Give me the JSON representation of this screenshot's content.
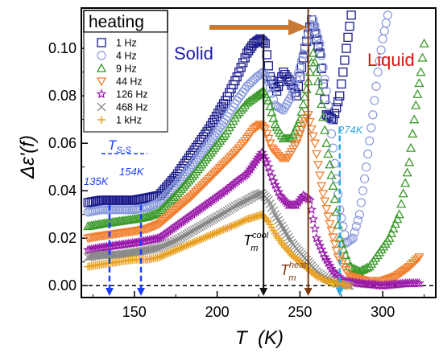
{
  "chart_data": {
    "type": "scatter",
    "title": "",
    "xlabel": "T  (K)",
    "ylabel": "Δε'(f)",
    "xlim": [
      118,
      332
    ],
    "ylim": [
      -0.005,
      0.117
    ],
    "x_ticks": [
      150,
      200,
      250,
      300
    ],
    "y_ticks": [
      0.0,
      0.02,
      0.04,
      0.06,
      0.08,
      0.1
    ],
    "x_tick_labels": [
      "150",
      "200",
      "250",
      "300"
    ],
    "y_tick_labels": [
      "0.00",
      "0.02",
      "0.04",
      "0.06",
      "0.08",
      "0.10"
    ],
    "legend": {
      "title": "heating",
      "position": "top-left"
    },
    "series": [
      {
        "name": "1 Hz",
        "color": "#1a1a8c",
        "marker": "square",
        "points": [
          [
            122,
            0.035
          ],
          [
            130,
            0.036
          ],
          [
            140,
            0.036
          ],
          [
            150,
            0.036
          ],
          [
            158,
            0.037
          ],
          [
            165,
            0.038
          ],
          [
            175,
            0.046
          ],
          [
            185,
            0.056
          ],
          [
            195,
            0.066
          ],
          [
            205,
            0.078
          ],
          [
            212,
            0.088
          ],
          [
            218,
            0.098
          ],
          [
            222,
            0.102
          ],
          [
            226,
            0.104
          ],
          [
            229,
            0.102
          ],
          [
            232,
            0.088
          ],
          [
            236,
            0.082
          ],
          [
            240,
            0.09
          ],
          [
            244,
            0.086
          ],
          [
            248,
            0.08
          ],
          [
            253,
            0.1
          ],
          [
            257,
            0.112
          ],
          [
            262,
            0.098
          ],
          [
            266,
            0.072
          ],
          [
            270,
            0.07
          ],
          [
            274,
            0.08
          ],
          [
            278,
            0.1
          ],
          [
            281,
            0.114
          ]
        ]
      },
      {
        "name": "4 Hz",
        "color": "#8899dd",
        "marker": "circle",
        "points": [
          [
            122,
            0.031
          ],
          [
            130,
            0.032
          ],
          [
            140,
            0.032
          ],
          [
            150,
            0.032
          ],
          [
            158,
            0.033
          ],
          [
            165,
            0.035
          ],
          [
            175,
            0.042
          ],
          [
            185,
            0.051
          ],
          [
            195,
            0.06
          ],
          [
            205,
            0.07
          ],
          [
            212,
            0.078
          ],
          [
            218,
            0.084
          ],
          [
            224,
            0.088
          ],
          [
            228,
            0.09
          ],
          [
            231,
            0.086
          ],
          [
            235,
            0.076
          ],
          [
            240,
            0.074
          ],
          [
            245,
            0.08
          ],
          [
            250,
            0.092
          ],
          [
            255,
            0.106
          ],
          [
            258,
            0.112
          ],
          [
            262,
            0.102
          ],
          [
            266,
            0.082
          ],
          [
            270,
            0.058
          ],
          [
            274,
            0.032
          ],
          [
            278,
            0.018
          ],
          [
            282,
            0.02
          ],
          [
            286,
            0.03
          ],
          [
            290,
            0.05
          ],
          [
            294,
            0.072
          ],
          [
            297,
            0.09
          ],
          [
            300,
            0.104
          ],
          [
            303,
            0.114
          ]
        ]
      },
      {
        "name": "9 Hz",
        "color": "#3a9a2a",
        "marker": "triangle-up",
        "points": [
          [
            122,
            0.025
          ],
          [
            130,
            0.026
          ],
          [
            140,
            0.027
          ],
          [
            150,
            0.028
          ],
          [
            158,
            0.029
          ],
          [
            165,
            0.031
          ],
          [
            175,
            0.038
          ],
          [
            185,
            0.046
          ],
          [
            195,
            0.055
          ],
          [
            205,
            0.064
          ],
          [
            212,
            0.072
          ],
          [
            218,
            0.077
          ],
          [
            224,
            0.08
          ],
          [
            228,
            0.082
          ],
          [
            231,
            0.078
          ],
          [
            235,
            0.068
          ],
          [
            240,
            0.062
          ],
          [
            245,
            0.062
          ],
          [
            250,
            0.07
          ],
          [
            255,
            0.086
          ],
          [
            258,
            0.098
          ],
          [
            262,
            0.082
          ],
          [
            266,
            0.06
          ],
          [
            270,
            0.042
          ],
          [
            274,
            0.02
          ],
          [
            280,
            0.008
          ],
          [
            286,
            0.006
          ],
          [
            292,
            0.008
          ],
          [
            298,
            0.014
          ],
          [
            304,
            0.02
          ],
          [
            310,
            0.03
          ],
          [
            316,
            0.052
          ],
          [
            320,
            0.076
          ],
          [
            323,
            0.09
          ],
          [
            325,
            0.102
          ]
        ]
      },
      {
        "name": "44 Hz",
        "color": "#f08030",
        "marker": "triangle-down",
        "points": [
          [
            122,
            0.02
          ],
          [
            130,
            0.021
          ],
          [
            140,
            0.022
          ],
          [
            150,
            0.023
          ],
          [
            158,
            0.024
          ],
          [
            165,
            0.026
          ],
          [
            175,
            0.032
          ],
          [
            185,
            0.038
          ],
          [
            195,
            0.045
          ],
          [
            205,
            0.052
          ],
          [
            212,
            0.057
          ],
          [
            218,
            0.062
          ],
          [
            222,
            0.066
          ],
          [
            226,
            0.068
          ],
          [
            229,
            0.066
          ],
          [
            233,
            0.058
          ],
          [
            238,
            0.054
          ],
          [
            243,
            0.054
          ],
          [
            248,
            0.06
          ],
          [
            252,
            0.068
          ],
          [
            255,
            0.072
          ],
          [
            259,
            0.06
          ],
          [
            263,
            0.042
          ],
          [
            268,
            0.026
          ],
          [
            273,
            0.012
          ],
          [
            280,
            0.004
          ],
          [
            290,
            0.002
          ],
          [
            300,
            0.002
          ],
          [
            308,
            0.004
          ],
          [
            316,
            0.008
          ],
          [
            322,
            0.012
          ]
        ]
      },
      {
        "name": "126 Hz",
        "color": "#9a1aaa",
        "marker": "star",
        "points": [
          [
            122,
            0.015
          ],
          [
            130,
            0.016
          ],
          [
            140,
            0.017
          ],
          [
            150,
            0.018
          ],
          [
            158,
            0.019
          ],
          [
            165,
            0.02
          ],
          [
            175,
            0.025
          ],
          [
            185,
            0.03
          ],
          [
            195,
            0.035
          ],
          [
            205,
            0.04
          ],
          [
            212,
            0.044
          ],
          [
            218,
            0.047
          ],
          [
            223,
            0.052
          ],
          [
            227,
            0.056
          ],
          [
            230,
            0.052
          ],
          [
            234,
            0.044
          ],
          [
            238,
            0.038
          ],
          [
            243,
            0.034
          ],
          [
            248,
            0.034
          ],
          [
            252,
            0.038
          ],
          [
            256,
            0.036
          ],
          [
            260,
            0.02
          ],
          [
            265,
            0.012
          ],
          [
            270,
            0.006
          ],
          [
            276,
            0.002
          ],
          [
            285,
            0.001
          ],
          [
            300,
            0.0
          ],
          [
            315,
            0.001
          ],
          [
            322,
            0.001
          ]
        ]
      },
      {
        "name": "468 Hz",
        "color": "#888888",
        "marker": "cross",
        "points": [
          [
            122,
            0.012
          ],
          [
            130,
            0.013
          ],
          [
            140,
            0.013
          ],
          [
            150,
            0.014
          ],
          [
            158,
            0.015
          ],
          [
            165,
            0.016
          ],
          [
            175,
            0.019
          ],
          [
            185,
            0.023
          ],
          [
            195,
            0.027
          ],
          [
            205,
            0.031
          ],
          [
            212,
            0.034
          ],
          [
            218,
            0.036
          ],
          [
            223,
            0.038
          ],
          [
            227,
            0.039
          ],
          [
            231,
            0.036
          ],
          [
            235,
            0.03
          ],
          [
            240,
            0.024
          ],
          [
            245,
            0.018
          ],
          [
            250,
            0.014
          ],
          [
            255,
            0.01
          ],
          [
            260,
            0.006
          ],
          [
            266,
            0.003
          ],
          [
            272,
            0.001
          ],
          [
            280,
            0.0
          ]
        ]
      },
      {
        "name": "1 kHz",
        "color": "#e8a020",
        "marker": "plus",
        "points": [
          [
            122,
            0.008
          ],
          [
            130,
            0.009
          ],
          [
            140,
            0.01
          ],
          [
            150,
            0.011
          ],
          [
            158,
            0.011
          ],
          [
            165,
            0.012
          ],
          [
            175,
            0.015
          ],
          [
            185,
            0.018
          ],
          [
            195,
            0.021
          ],
          [
            205,
            0.024
          ],
          [
            212,
            0.026
          ],
          [
            218,
            0.028
          ],
          [
            223,
            0.029
          ],
          [
            227,
            0.03
          ],
          [
            231,
            0.027
          ],
          [
            235,
            0.022
          ],
          [
            240,
            0.017
          ],
          [
            245,
            0.013
          ],
          [
            250,
            0.01
          ],
          [
            255,
            0.007
          ],
          [
            260,
            0.004
          ],
          [
            266,
            0.002
          ],
          [
            272,
            0.001
          ],
          [
            280,
            0.0
          ]
        ]
      }
    ],
    "reference_lines": [
      {
        "name": "T-s-s-135",
        "x": 135,
        "y_top": 0.034,
        "color": "#1a3cff",
        "style": "dashed"
      },
      {
        "name": "T-s-s-154",
        "x": 154,
        "y_top": 0.034,
        "color": "#1a3cff",
        "style": "dashed"
      },
      {
        "name": "T-cool",
        "x": 228,
        "y_top": 0.106,
        "color": "#111111",
        "style": "solid"
      },
      {
        "name": "T-heat",
        "x": 255,
        "y_top": 0.117,
        "color": "#7a3a10",
        "style": "solid"
      },
      {
        "name": "T-274",
        "x": 274,
        "y_top": 0.067,
        "color": "#30a8e0",
        "style": "dashed"
      }
    ],
    "annotations": {
      "solid": "Solid",
      "liquid": "Liquid",
      "tss_main": "T",
      "tss_sub": "S-S",
      "k135": "135K",
      "k154": "154K",
      "k274": "274K",
      "tcool_main": "T",
      "tcool_sub": "m",
      "tcool_sup": "cool",
      "theat_main": "T",
      "theat_sub": "m",
      "theat_sup": "heat"
    },
    "colors": {
      "solid": "#1a1ab0",
      "liquid": "#e01010",
      "arrow": "#c87830"
    }
  }
}
